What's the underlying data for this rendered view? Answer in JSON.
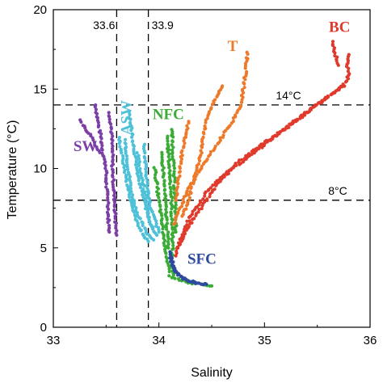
{
  "chart_data": {
    "type": "scatter",
    "title": "",
    "xlabel": "Salinity",
    "ylabel": "Temperature (°C)",
    "xlim": [
      33,
      36
    ],
    "ylim": [
      0,
      20
    ],
    "xticks": [
      "33",
      "34",
      "35",
      "36"
    ],
    "yticks": [
      "0",
      "5",
      "10",
      "15",
      "20"
    ],
    "grid": false,
    "reference_lines": [
      {
        "orientation": "vertical",
        "value": 33.6,
        "label": "33.6"
      },
      {
        "orientation": "vertical",
        "value": 33.9,
        "label": "33.9"
      },
      {
        "orientation": "horizontal",
        "value": 14,
        "label": "14°C"
      },
      {
        "orientation": "horizontal",
        "value": 8,
        "label": "8°C"
      }
    ],
    "series": [
      {
        "name": "SW",
        "color": "#7b3fa6",
        "profiles": [
          [
            [
              33.4,
              14.0
            ],
            [
              33.42,
              13.0
            ],
            [
              33.45,
              12.0
            ],
            [
              33.47,
              11.0
            ],
            [
              33.5,
              10.0
            ],
            [
              33.5,
              9.0
            ],
            [
              33.52,
              8.0
            ],
            [
              33.52,
              7.0
            ],
            [
              33.53,
              6.0
            ]
          ],
          [
            [
              33.26,
              13.0
            ],
            [
              33.3,
              12.5
            ],
            [
              33.36,
              12.0
            ],
            [
              33.4,
              11.5
            ],
            [
              33.44,
              11.0
            ]
          ],
          [
            [
              33.53,
              13.5
            ],
            [
              33.55,
              12.5
            ],
            [
              33.56,
              11.0
            ],
            [
              33.56,
              10.0
            ],
            [
              33.57,
              9.0
            ],
            [
              33.58,
              8.0
            ],
            [
              33.59,
              6.5
            ],
            [
              33.6,
              5.8
            ]
          ]
        ]
      },
      {
        "name": "ASW",
        "color": "#4ec1d9",
        "profiles": [
          [
            [
              33.62,
              12.0
            ],
            [
              33.66,
              10.5
            ],
            [
              33.7,
              9.0
            ],
            [
              33.75,
              7.5
            ],
            [
              33.8,
              6.5
            ],
            [
              33.85,
              5.8
            ],
            [
              33.9,
              5.4
            ]
          ],
          [
            [
              33.68,
              11.8
            ],
            [
              33.7,
              10.5
            ],
            [
              33.72,
              9.5
            ],
            [
              33.74,
              8.5
            ],
            [
              33.78,
              7.5
            ],
            [
              33.82,
              6.8
            ],
            [
              33.88,
              6.0
            ],
            [
              33.95,
              5.5
            ]
          ],
          [
            [
              33.72,
              13.5
            ],
            [
              33.74,
              12.5
            ],
            [
              33.76,
              11.5
            ],
            [
              33.78,
              10.5
            ],
            [
              33.8,
              9.5
            ],
            [
              33.84,
              8.5
            ],
            [
              33.88,
              7.5
            ],
            [
              33.92,
              6.5
            ],
            [
              33.98,
              5.8
            ]
          ],
          [
            [
              33.8,
              11.0
            ],
            [
              33.82,
              10.0
            ],
            [
              33.85,
              9.0
            ],
            [
              33.88,
              8.0
            ],
            [
              33.9,
              7.0
            ],
            [
              33.94,
              6.2
            ]
          ],
          [
            [
              33.86,
              11.5
            ],
            [
              33.87,
              10.5
            ],
            [
              33.88,
              9.5
            ],
            [
              33.9,
              8.5
            ],
            [
              33.92,
              7.5
            ],
            [
              33.96,
              6.8
            ],
            [
              34.0,
              6.0
            ]
          ]
        ]
      },
      {
        "name": "NFC",
        "color": "#3aab35",
        "profiles": [
          [
            [
              34.08,
              12.0
            ],
            [
              34.09,
              11.0
            ],
            [
              34.1,
              10.0
            ],
            [
              34.11,
              9.0
            ],
            [
              34.12,
              8.0
            ],
            [
              34.12,
              7.0
            ],
            [
              34.13,
              6.0
            ],
            [
              34.13,
              5.0
            ],
            [
              34.12,
              4.0
            ],
            [
              34.14,
              3.3
            ]
          ],
          [
            [
              34.12,
              12.5
            ],
            [
              34.13,
              11.5
            ],
            [
              34.14,
              10.0
            ],
            [
              34.15,
              8.5
            ],
            [
              34.16,
              7.0
            ],
            [
              34.16,
              6.0
            ]
          ],
          [
            [
              33.96,
              10.0
            ],
            [
              33.98,
              9.0
            ],
            [
              34.0,
              8.0
            ],
            [
              34.02,
              7.0
            ],
            [
              34.04,
              6.0
            ],
            [
              34.06,
              5.0
            ],
            [
              34.08,
              4.2
            ],
            [
              34.1,
              3.5
            ]
          ],
          [
            [
              34.02,
              11.0
            ],
            [
              34.04,
              10.0
            ],
            [
              34.05,
              9.0
            ],
            [
              34.06,
              8.0
            ],
            [
              34.07,
              7.0
            ],
            [
              34.08,
              6.0
            ],
            [
              34.09,
              5.0
            ]
          ],
          [
            [
              34.1,
              3.2
            ],
            [
              34.2,
              3.0
            ],
            [
              34.3,
              2.8
            ],
            [
              34.4,
              2.7
            ],
            [
              34.5,
              2.6
            ]
          ]
        ]
      },
      {
        "name": "T",
        "color": "#ec7a2a",
        "profiles": [
          [
            [
              34.84,
              17.3
            ],
            [
              34.82,
              16.0
            ],
            [
              34.8,
              15.0
            ],
            [
              34.78,
              14.0
            ],
            [
              34.7,
              13.0
            ],
            [
              34.6,
              12.0
            ],
            [
              34.5,
              11.0
            ],
            [
              34.4,
              10.0
            ],
            [
              34.3,
              9.0
            ],
            [
              34.2,
              7.5
            ],
            [
              34.14,
              6.5
            ]
          ],
          [
            [
              34.6,
              15.2
            ],
            [
              34.55,
              14.5
            ],
            [
              34.5,
              14.0
            ],
            [
              34.45,
              13.0
            ],
            [
              34.42,
              12.0
            ],
            [
              34.4,
              11.0
            ],
            [
              34.36,
              10.0
            ],
            [
              34.32,
              9.0
            ],
            [
              34.28,
              8.0
            ],
            [
              34.22,
              7.0
            ]
          ],
          [
            [
              34.28,
              13.0
            ],
            [
              34.25,
              12.0
            ],
            [
              34.22,
              11.0
            ],
            [
              34.2,
              10.0
            ],
            [
              34.18,
              9.0
            ],
            [
              34.16,
              8.0
            ]
          ]
        ]
      },
      {
        "name": "BC",
        "color": "#e03a2c",
        "profiles": [
          [
            [
              35.8,
              17.2
            ],
            [
              35.78,
              16.5
            ],
            [
              35.8,
              16.0
            ],
            [
              35.78,
              15.5
            ],
            [
              35.7,
              15.0
            ],
            [
              35.5,
              14.0
            ],
            [
              35.3,
              13.0
            ],
            [
              35.1,
              12.0
            ],
            [
              34.9,
              11.0
            ],
            [
              34.7,
              10.0
            ],
            [
              34.55,
              9.0
            ],
            [
              34.45,
              8.0
            ],
            [
              34.35,
              7.0
            ],
            [
              34.25,
              6.0
            ],
            [
              34.18,
              5.0
            ]
          ],
          [
            [
              35.65,
              18.0
            ],
            [
              35.66,
              17.5
            ],
            [
              35.68,
              17.0
            ],
            [
              35.7,
              16.5
            ]
          ],
          [
            [
              35.75,
              15.2
            ],
            [
              35.55,
              14.3
            ],
            [
              35.35,
              13.3
            ],
            [
              35.15,
              12.3
            ],
            [
              34.95,
              11.4
            ],
            [
              34.75,
              10.4
            ],
            [
              34.58,
              9.4
            ],
            [
              34.45,
              8.5
            ],
            [
              34.35,
              7.5
            ],
            [
              34.26,
              6.5
            ],
            [
              34.2,
              5.5
            ],
            [
              34.16,
              4.5
            ]
          ]
        ]
      },
      {
        "name": "SFC",
        "color": "#2e4aa0",
        "profiles": [
          [
            [
              34.1,
              4.8
            ],
            [
              34.12,
              4.0
            ],
            [
              34.15,
              3.5
            ],
            [
              34.2,
              3.2
            ],
            [
              34.25,
              3.0
            ],
            [
              34.3,
              2.9
            ],
            [
              34.35,
              2.8
            ],
            [
              34.4,
              2.75
            ],
            [
              34.45,
              2.7
            ]
          ],
          [
            [
              34.12,
              4.5
            ],
            [
              34.14,
              3.8
            ],
            [
              34.18,
              3.4
            ],
            [
              34.22,
              3.1
            ],
            [
              34.28,
              2.95
            ],
            [
              34.34,
              2.85
            ]
          ]
        ]
      }
    ],
    "series_labels": [
      {
        "name": "SW",
        "x": 33.19,
        "y": 11.1
      },
      {
        "name": "ASW",
        "x": 33.74,
        "y": 12.1
      },
      {
        "name": "NFC",
        "x": 33.94,
        "y": 13.1
      },
      {
        "name": "T",
        "x": 34.65,
        "y": 17.4
      },
      {
        "name": "BC",
        "x": 35.61,
        "y": 18.6
      },
      {
        "name": "SFC",
        "x": 34.27,
        "y": 4.0
      }
    ]
  }
}
